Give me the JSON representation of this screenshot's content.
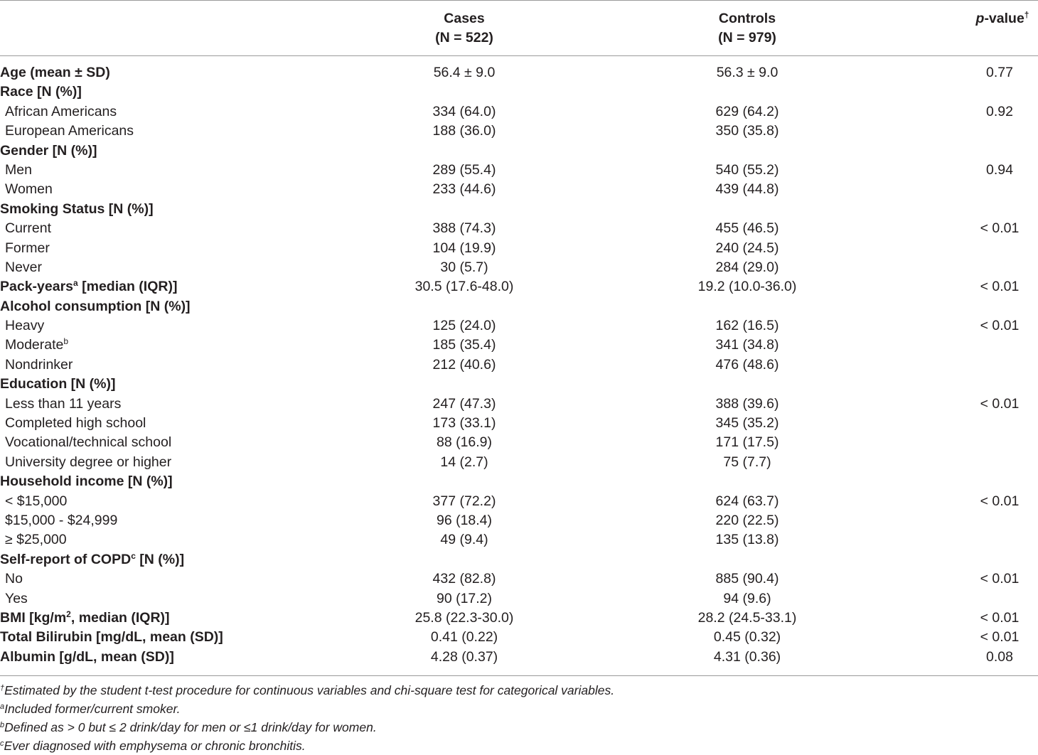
{
  "header": {
    "cases_label": "Cases",
    "cases_n": "(N = 522)",
    "controls_label": "Controls",
    "controls_n": "(N = 979)",
    "pvalue_p": "p",
    "pvalue_rest": "-value",
    "pvalue_sup": "†"
  },
  "rows": [
    {
      "label": "Age (mean ± SD)",
      "sup": "",
      "label_after": "",
      "bold": true,
      "cases": "56.4 ± 9.0",
      "controls": "56.3 ± 9.0",
      "p": "0.77"
    },
    {
      "label": "Race [N (%)]",
      "sup": "",
      "label_after": "",
      "bold": true,
      "cases": "",
      "controls": "",
      "p": ""
    },
    {
      "label": "African Americans",
      "sup": "",
      "label_after": "",
      "bold": false,
      "cases": "334 (64.0)",
      "controls": "629 (64.2)",
      "p": "0.92"
    },
    {
      "label": "European Americans",
      "sup": "",
      "label_after": "",
      "bold": false,
      "cases": "188 (36.0)",
      "controls": "350 (35.8)",
      "p": ""
    },
    {
      "label": "Gender [N (%)]",
      "sup": "",
      "label_after": "",
      "bold": true,
      "cases": "",
      "controls": "",
      "p": ""
    },
    {
      "label": "Men",
      "sup": "",
      "label_after": "",
      "bold": false,
      "cases": "289 (55.4)",
      "controls": "540 (55.2)",
      "p": "0.94"
    },
    {
      "label": "Women",
      "sup": "",
      "label_after": "",
      "bold": false,
      "cases": "233 (44.6)",
      "controls": "439 (44.8)",
      "p": ""
    },
    {
      "label": "Smoking Status [N (%)]",
      "sup": "",
      "label_after": "",
      "bold": true,
      "cases": "",
      "controls": "",
      "p": ""
    },
    {
      "label": "Current",
      "sup": "",
      "label_after": "",
      "bold": false,
      "cases": "388 (74.3)",
      "controls": "455 (46.5)",
      "p": "< 0.01"
    },
    {
      "label": "Former",
      "sup": "",
      "label_after": "",
      "bold": false,
      "cases": "104 (19.9)",
      "controls": "240 (24.5)",
      "p": ""
    },
    {
      "label": "Never",
      "sup": "",
      "label_after": "",
      "bold": false,
      "cases": "30 (5.7)",
      "controls": "284 (29.0)",
      "p": ""
    },
    {
      "label": "Pack-years",
      "sup": "a",
      "label_after": " [median (IQR)]",
      "bold": true,
      "cases": "30.5 (17.6-48.0)",
      "controls": "19.2 (10.0-36.0)",
      "p": "< 0.01"
    },
    {
      "label": "Alcohol consumption [N (%)]",
      "sup": "",
      "label_after": "",
      "bold": true,
      "cases": "",
      "controls": "",
      "p": ""
    },
    {
      "label": "Heavy",
      "sup": "",
      "label_after": "",
      "bold": false,
      "cases": "125 (24.0)",
      "controls": "162 (16.5)",
      "p": "< 0.01"
    },
    {
      "label": "Moderate",
      "sup": "b",
      "label_after": "",
      "bold": false,
      "cases": "185 (35.4)",
      "controls": "341 (34.8)",
      "p": ""
    },
    {
      "label": "Nondrinker",
      "sup": "",
      "label_after": "",
      "bold": false,
      "cases": "212 (40.6)",
      "controls": "476 (48.6)",
      "p": ""
    },
    {
      "label": "Education [N (%)]",
      "sup": "",
      "label_after": "",
      "bold": true,
      "cases": "",
      "controls": "",
      "p": ""
    },
    {
      "label": "Less than 11 years",
      "sup": "",
      "label_after": "",
      "bold": false,
      "cases": "247 (47.3)",
      "controls": "388 (39.6)",
      "p": "< 0.01"
    },
    {
      "label": "Completed high school",
      "sup": "",
      "label_after": "",
      "bold": false,
      "cases": "173 (33.1)",
      "controls": "345 (35.2)",
      "p": ""
    },
    {
      "label": "Vocational/technical school",
      "sup": "",
      "label_after": "",
      "bold": false,
      "cases": "88 (16.9)",
      "controls": "171 (17.5)",
      "p": ""
    },
    {
      "label": "University degree or higher",
      "sup": "",
      "label_after": "",
      "bold": false,
      "cases": "14 (2.7)",
      "controls": "75 (7.7)",
      "p": ""
    },
    {
      "label": "Household income [N (%)]",
      "sup": "",
      "label_after": "",
      "bold": true,
      "cases": "",
      "controls": "",
      "p": ""
    },
    {
      "label": "< $15,000",
      "sup": "",
      "label_after": "",
      "bold": false,
      "cases": "377 (72.2)",
      "controls": "624 (63.7)",
      "p": "< 0.01"
    },
    {
      "label": "$15,000 - $24,999",
      "sup": "",
      "label_after": "",
      "bold": false,
      "cases": "96 (18.4)",
      "controls": "220 (22.5)",
      "p": ""
    },
    {
      "label": "≥ $25,000",
      "sup": "",
      "label_after": "",
      "bold": false,
      "cases": "49 (9.4)",
      "controls": "135 (13.8)",
      "p": ""
    },
    {
      "label": "Self-report of COPD",
      "sup": "c",
      "label_after": " [N (%)]",
      "bold": true,
      "cases": "",
      "controls": "",
      "p": ""
    },
    {
      "label": "No",
      "sup": "",
      "label_after": "",
      "bold": false,
      "cases": "432 (82.8)",
      "controls": "885 (90.4)",
      "p": "< 0.01"
    },
    {
      "label": "Yes",
      "sup": "",
      "label_after": "",
      "bold": false,
      "cases": "90 (17.2)",
      "controls": "94 (9.6)",
      "p": ""
    },
    {
      "label": "BMI [kg/m",
      "sup": "2",
      "label_after": ", median (IQR)]",
      "bold": true,
      "cases": "25.8 (22.3-30.0)",
      "controls": "28.2 (24.5-33.1)",
      "p": "< 0.01"
    },
    {
      "label": "Total Bilirubin [mg/dL, mean (SD)]",
      "sup": "",
      "label_after": "",
      "bold": true,
      "cases": "0.41 (0.22)",
      "controls": "0.45 (0.32)",
      "p": "< 0.01"
    },
    {
      "label": "Albumin [g/dL, mean (SD)]",
      "sup": "",
      "label_after": "",
      "bold": true,
      "cases": "4.28 (0.37)",
      "controls": "4.31 (0.36)",
      "p": "0.08"
    }
  ],
  "footnotes": [
    {
      "mark": "†",
      "text": "Estimated by the student t-test procedure for continuous variables and chi-square test for categorical variables."
    },
    {
      "mark": "a",
      "text": "Included former/current smoker."
    },
    {
      "mark": "b",
      "text": "Defined as > 0 but ≤ 2 drink/day for men or ≤1 drink/day for women."
    },
    {
      "mark": "c",
      "text": "Ever diagnosed with emphysema or chronic bronchitis."
    }
  ]
}
